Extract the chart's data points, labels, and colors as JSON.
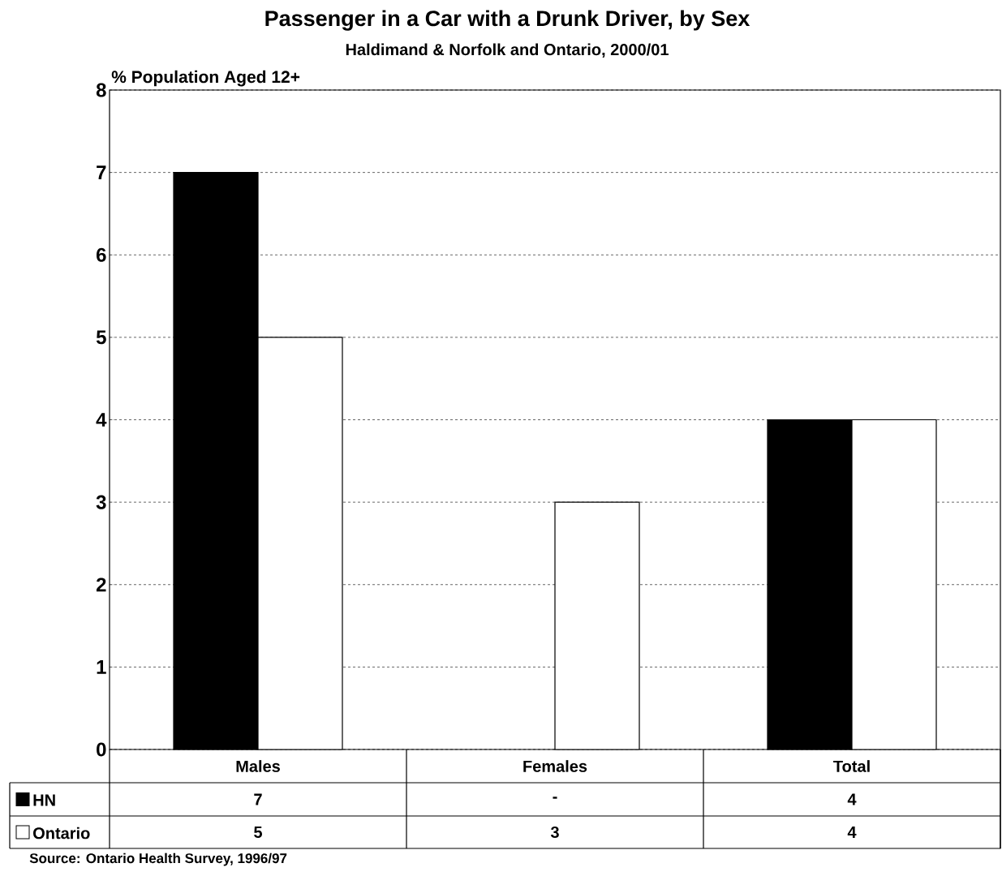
{
  "chart_data": {
    "type": "bar",
    "title": "Passenger in a Car with a Drunk Driver, by Sex",
    "subtitle": "Haldimand & Norfolk and Ontario, 2000/01",
    "ylabel": "% Population Aged 12+",
    "categories": [
      "Males",
      "Females",
      "Total"
    ],
    "series": [
      {
        "name": "HN",
        "color": "#000000",
        "values": [
          7,
          null,
          4
        ],
        "value_labels": [
          "7",
          "-",
          "4"
        ]
      },
      {
        "name": "Ontario",
        "color": "#ffffff",
        "values": [
          5,
          3,
          4
        ],
        "value_labels": [
          "5",
          "3",
          "4"
        ]
      }
    ],
    "ylim": [
      0,
      8
    ],
    "yticks": [
      0,
      1,
      2,
      3,
      4,
      5,
      6,
      7,
      8
    ],
    "grid": "y",
    "legend": "bottom left",
    "annotations": [
      "Source: Ontario Health Survey, 1996/97"
    ]
  }
}
